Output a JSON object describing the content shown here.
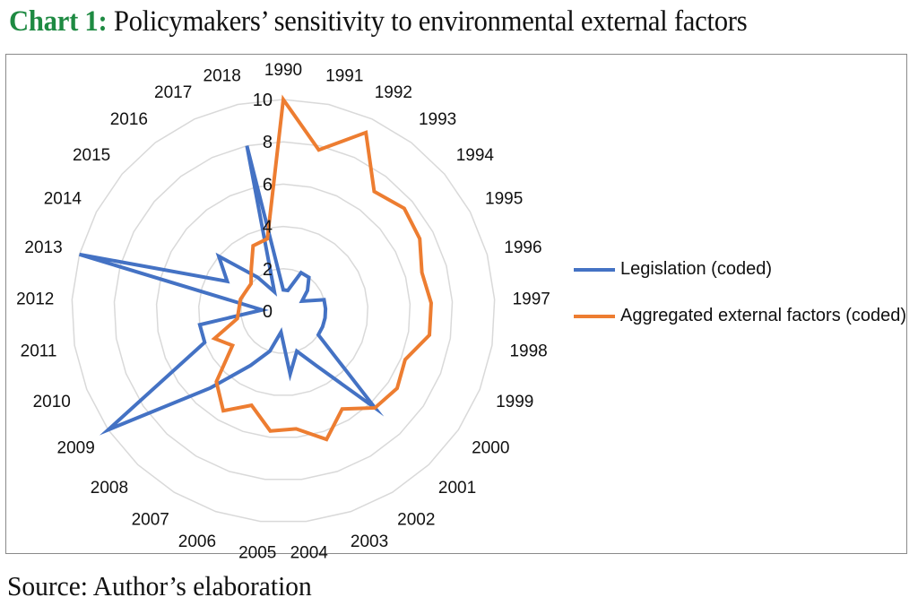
{
  "title": {
    "prefix": "Chart 1:",
    "text": " Policymakers’ sensitivity to environmental external factors"
  },
  "source": "Source: Author’s elaboration",
  "chart_data": {
    "type": "radar",
    "title": "Chart 1: Policymakers’ sensitivity to environmental external factors",
    "categories": [
      "1990",
      "1991",
      "1992",
      "1993",
      "1994",
      "1995",
      "1996",
      "1997",
      "1998",
      "1999",
      "2000",
      "2001",
      "2002",
      "2003",
      "2004",
      "2005",
      "2006",
      "2007",
      "2008",
      "2009",
      "2010",
      "2011",
      "2012",
      "2013",
      "2014",
      "2015",
      "2016",
      "2017",
      "2018"
    ],
    "radial_ticks": [
      0,
      2,
      4,
      6,
      8,
      10
    ],
    "rlim": [
      0,
      10
    ],
    "grid": true,
    "legend_position": "right",
    "series": [
      {
        "name": "Legislation (coded)",
        "color": "#4472c4",
        "values": [
          1,
          1,
          2,
          2,
          1.5,
          1,
          2,
          2,
          2,
          2,
          2,
          6.3,
          3,
          2,
          3,
          1,
          2,
          3,
          5,
          10,
          4,
          4,
          1,
          10,
          3,
          4,
          2,
          1,
          8
        ]
      },
      {
        "name": "Aggregated external factors (coded)",
        "color": "#ed7d31",
        "values": [
          10,
          7.8,
          9.3,
          7.1,
          7.5,
          7.3,
          6.8,
          7,
          7,
          6.2,
          6.5,
          6.3,
          5.4,
          6.4,
          5.6,
          5.7,
          4.7,
          5.5,
          4.6,
          2.9,
          3.5,
          2.2,
          2.1,
          2.1,
          2,
          2,
          2.5,
          3.4,
          3.5
        ]
      }
    ]
  },
  "legend": {
    "items": [
      {
        "label": "Legislation (coded)",
        "color": "#4472c4"
      },
      {
        "label": "Aggregated external factors (coded)",
        "color": "#ed7d31"
      }
    ]
  }
}
